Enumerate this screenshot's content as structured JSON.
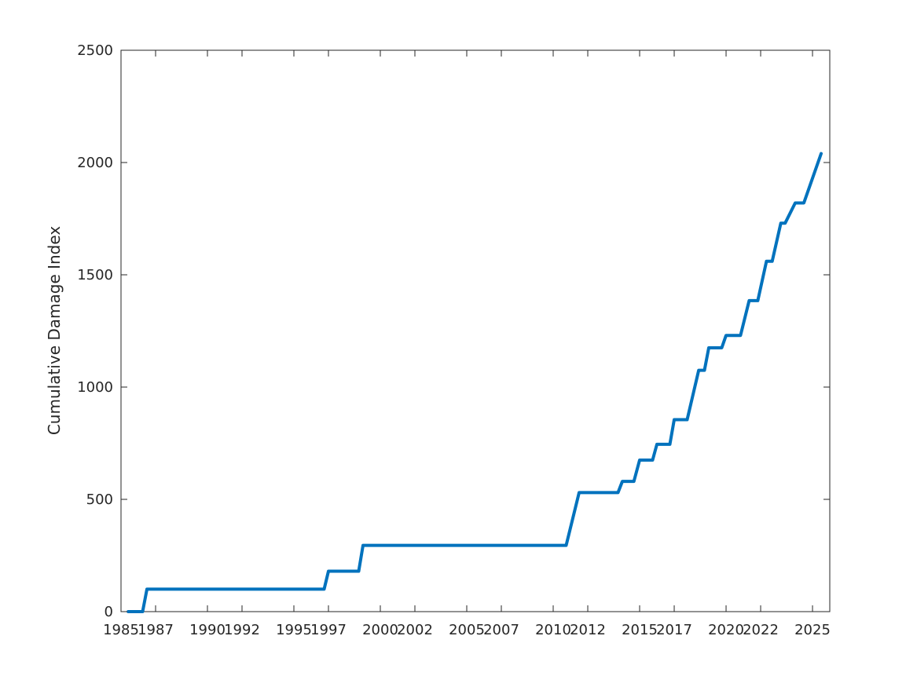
{
  "chart_data": {
    "type": "line",
    "title": "",
    "xlabel": "",
    "ylabel": "Cumulative Damage Index",
    "xlim": [
      "1985-01-01",
      "2025-12-31"
    ],
    "ylim": [
      0,
      2500
    ],
    "grid": false,
    "x_ticks": [
      "1985",
      "1987",
      "1990",
      "1992",
      "1995",
      "1997",
      "2000",
      "2002",
      "2005",
      "2007",
      "2010",
      "2012",
      "2015",
      "2017",
      "2020",
      "2022",
      "2025"
    ],
    "y_ticks": [
      "0",
      "500",
      "1000",
      "1500",
      "2000",
      "2500"
    ],
    "series": [
      {
        "color": "#0072bd",
        "x": [
          "1985-06-01",
          "1986-04-01",
          "1986-07-01",
          "1996-10-01",
          "1997-01-01",
          "1998-10-01",
          "1999-01-01",
          "2010-10-01",
          "2011-07-01",
          "2013-10-01",
          "2014-01-01",
          "2014-09-01",
          "2015-01-01",
          "2015-10-01",
          "2016-01-01",
          "2016-10-01",
          "2017-01-01",
          "2017-10-01",
          "2018-06-01",
          "2018-10-01",
          "2019-01-01",
          "2019-10-01",
          "2020-01-01",
          "2020-11-01",
          "2021-05-01",
          "2021-11-01",
          "2022-05-01",
          "2022-09-01",
          "2023-03-01",
          "2023-06-01",
          "2024-01-01",
          "2024-07-01",
          "2025-07-01"
        ],
        "y": [
          0,
          0,
          100,
          100,
          180,
          180,
          295,
          295,
          530,
          530,
          580,
          580,
          675,
          675,
          745,
          745,
          855,
          855,
          1075,
          1075,
          1175,
          1175,
          1230,
          1230,
          1385,
          1385,
          1560,
          1560,
          1730,
          1730,
          1820,
          1820,
          2040
        ]
      }
    ]
  }
}
